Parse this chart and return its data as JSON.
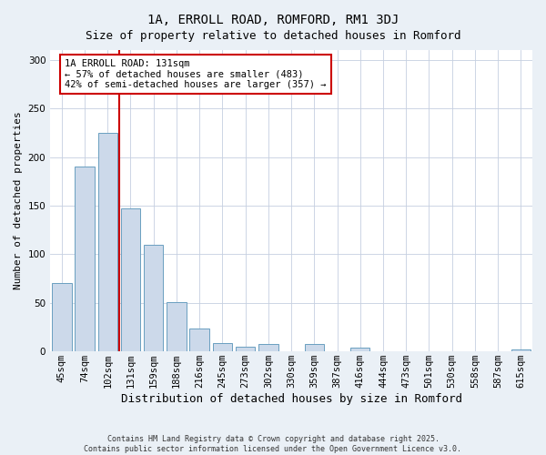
{
  "title": "1A, ERROLL ROAD, ROMFORD, RM1 3DJ",
  "subtitle": "Size of property relative to detached houses in Romford",
  "xlabel": "Distribution of detached houses by size in Romford",
  "ylabel": "Number of detached properties",
  "bar_labels": [
    "45sqm",
    "74sqm",
    "102sqm",
    "131sqm",
    "159sqm",
    "188sqm",
    "216sqm",
    "245sqm",
    "273sqm",
    "302sqm",
    "330sqm",
    "359sqm",
    "387sqm",
    "416sqm",
    "444sqm",
    "473sqm",
    "501sqm",
    "530sqm",
    "558sqm",
    "587sqm",
    "615sqm"
  ],
  "bar_values": [
    70,
    190,
    225,
    147,
    110,
    51,
    24,
    9,
    5,
    8,
    0,
    8,
    0,
    4,
    0,
    0,
    0,
    0,
    0,
    0,
    2
  ],
  "bar_color": "#ccd9ea",
  "bar_edge_color": "#6a9fc0",
  "vline_index": 3,
  "vline_color": "#cc0000",
  "ann_title": "1A ERROLL ROAD: 131sqm",
  "ann_line1": "← 57% of detached houses are smaller (483)",
  "ann_line2": "42% of semi-detached houses are larger (357) →",
  "ann_box_edgecolor": "#cc0000",
  "ylim": [
    0,
    310
  ],
  "yticks": [
    0,
    50,
    100,
    150,
    200,
    250,
    300
  ],
  "footer1": "Contains HM Land Registry data © Crown copyright and database right 2025.",
  "footer2": "Contains public sector information licensed under the Open Government Licence v3.0.",
  "fig_bg_color": "#eaf0f6",
  "plot_bg_color": "#ffffff",
  "grid_color": "#c5cfe0",
  "title_fontsize": 10,
  "subtitle_fontsize": 9,
  "xlabel_fontsize": 9,
  "ylabel_fontsize": 8,
  "tick_fontsize": 7.5,
  "ann_fontsize": 7.5,
  "footer_fontsize": 6.0
}
